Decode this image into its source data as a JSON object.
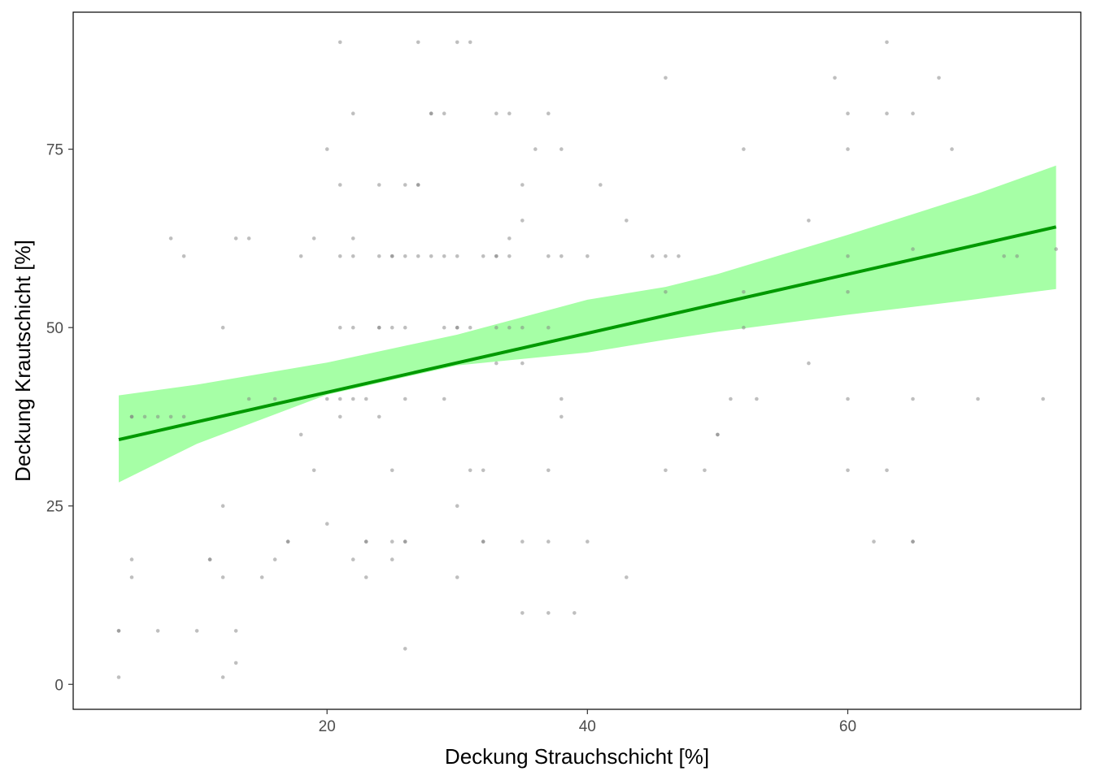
{
  "chart_data": {
    "type": "scatter",
    "xlabel": "Deckung Strauchschicht [%]",
    "ylabel": "Deckung Krautschicht [%]",
    "xlim": [
      0.5,
      77.9
    ],
    "ylim": [
      -3.5,
      94.2
    ],
    "x_ticks": [
      20,
      40,
      60
    ],
    "y_ticks": [
      0,
      25,
      50,
      75
    ],
    "grid": false,
    "colors": {
      "points": "#808080",
      "fit_line": "#009900",
      "confidence_band": "#a6ffa6",
      "axis": "#000000",
      "tick_label": "#4d4d4d"
    },
    "series": [
      {
        "type": "scatter",
        "points": [
          [
            4,
            1
          ],
          [
            4,
            7.5
          ],
          [
            4,
            7.5
          ],
          [
            5,
            37.5
          ],
          [
            5,
            37.5
          ],
          [
            5,
            17.5
          ],
          [
            5,
            15
          ],
          [
            6,
            37.5
          ],
          [
            7,
            37.5
          ],
          [
            7,
            7.5
          ],
          [
            8,
            37.5
          ],
          [
            8,
            62.5
          ],
          [
            9,
            37.5
          ],
          [
            9,
            60
          ],
          [
            10,
            7.5
          ],
          [
            11,
            17.5
          ],
          [
            11,
            17.5
          ],
          [
            12,
            50
          ],
          [
            12,
            25
          ],
          [
            12,
            15
          ],
          [
            12,
            1
          ],
          [
            13,
            62.5
          ],
          [
            13,
            7.5
          ],
          [
            13,
            3
          ],
          [
            14,
            62.5
          ],
          [
            14,
            40
          ],
          [
            15,
            15
          ],
          [
            16,
            40
          ],
          [
            16,
            17.5
          ],
          [
            17,
            20
          ],
          [
            17,
            20
          ],
          [
            18,
            60
          ],
          [
            18,
            35
          ],
          [
            19,
            62.5
          ],
          [
            19,
            30
          ],
          [
            20,
            75
          ],
          [
            20,
            40
          ],
          [
            20,
            22.5
          ],
          [
            21,
            90
          ],
          [
            21,
            70
          ],
          [
            21,
            60
          ],
          [
            21,
            50
          ],
          [
            21,
            40
          ],
          [
            21,
            37.5
          ],
          [
            22,
            80
          ],
          [
            22,
            62.5
          ],
          [
            22,
            60
          ],
          [
            22,
            50
          ],
          [
            22,
            40
          ],
          [
            22,
            17.5
          ],
          [
            23,
            40
          ],
          [
            23,
            20
          ],
          [
            23,
            20
          ],
          [
            23,
            15
          ],
          [
            24,
            70
          ],
          [
            24,
            60
          ],
          [
            24,
            50
          ],
          [
            24,
            50
          ],
          [
            24,
            37.5
          ],
          [
            25,
            60
          ],
          [
            25,
            60
          ],
          [
            25,
            50
          ],
          [
            25,
            30
          ],
          [
            25,
            20
          ],
          [
            25,
            17.5
          ],
          [
            26,
            70
          ],
          [
            26,
            60
          ],
          [
            26,
            50
          ],
          [
            26,
            40
          ],
          [
            26,
            20
          ],
          [
            26,
            20
          ],
          [
            26,
            5
          ],
          [
            27,
            90
          ],
          [
            27,
            70
          ],
          [
            27,
            70
          ],
          [
            27,
            60
          ],
          [
            28,
            80
          ],
          [
            28,
            80
          ],
          [
            28,
            60
          ],
          [
            29,
            80
          ],
          [
            29,
            60
          ],
          [
            29,
            50
          ],
          [
            29,
            40
          ],
          [
            30,
            90
          ],
          [
            30,
            60
          ],
          [
            30,
            50
          ],
          [
            30,
            50
          ],
          [
            30,
            25
          ],
          [
            30,
            15
          ],
          [
            31,
            90
          ],
          [
            31,
            50
          ],
          [
            31,
            30
          ],
          [
            32,
            60
          ],
          [
            32,
            30
          ],
          [
            32,
            20
          ],
          [
            32,
            20
          ],
          [
            33,
            80
          ],
          [
            33,
            60
          ],
          [
            33,
            60
          ],
          [
            33,
            50
          ],
          [
            33,
            45
          ],
          [
            34,
            80
          ],
          [
            34,
            62.5
          ],
          [
            34,
            60
          ],
          [
            34,
            50
          ],
          [
            35,
            70
          ],
          [
            35,
            65
          ],
          [
            35,
            50
          ],
          [
            35,
            45
          ],
          [
            35,
            20
          ],
          [
            35,
            10
          ],
          [
            36,
            75
          ],
          [
            37,
            80
          ],
          [
            37,
            60
          ],
          [
            37,
            50
          ],
          [
            37,
            30
          ],
          [
            37,
            20
          ],
          [
            37,
            10
          ],
          [
            38,
            75
          ],
          [
            38,
            60
          ],
          [
            38,
            40
          ],
          [
            38,
            37.5
          ],
          [
            39,
            10
          ],
          [
            40,
            60
          ],
          [
            40,
            20
          ],
          [
            41,
            70
          ],
          [
            43,
            65
          ],
          [
            43,
            15
          ],
          [
            45,
            60
          ],
          [
            46,
            85
          ],
          [
            46,
            60
          ],
          [
            46,
            55
          ],
          [
            46,
            30
          ],
          [
            47,
            60
          ],
          [
            49,
            30
          ],
          [
            50,
            35
          ],
          [
            50,
            35
          ],
          [
            51,
            40
          ],
          [
            52,
            75
          ],
          [
            52,
            55
          ],
          [
            52,
            50
          ],
          [
            53,
            40
          ],
          [
            57,
            65
          ],
          [
            57,
            45
          ],
          [
            59,
            85
          ],
          [
            60,
            80
          ],
          [
            60,
            75
          ],
          [
            60,
            60
          ],
          [
            60,
            55
          ],
          [
            60,
            40
          ],
          [
            60,
            30
          ],
          [
            62,
            20
          ],
          [
            63,
            90
          ],
          [
            63,
            80
          ],
          [
            63,
            30
          ],
          [
            65,
            80
          ],
          [
            65,
            61
          ],
          [
            65,
            40
          ],
          [
            65,
            20
          ],
          [
            65,
            20
          ],
          [
            67,
            85
          ],
          [
            68,
            75
          ],
          [
            70,
            40
          ],
          [
            72,
            60
          ],
          [
            73,
            60
          ],
          [
            75,
            40
          ],
          [
            76,
            61
          ]
        ]
      },
      {
        "type": "line",
        "x": [
          4,
          76
        ],
        "y": [
          34.3,
          64.1
        ]
      },
      {
        "type": "area",
        "x": [
          4,
          10,
          20,
          30,
          40,
          46,
          50,
          60,
          70,
          76
        ],
        "ymin": [
          28.3,
          33.7,
          40.6,
          44.7,
          46.5,
          48.3,
          49.4,
          51.8,
          54.0,
          55.4
        ],
        "ymax": [
          40.5,
          42.0,
          45.1,
          49.0,
          53.9,
          55.7,
          57.5,
          63.0,
          68.8,
          72.7
        ]
      }
    ]
  }
}
